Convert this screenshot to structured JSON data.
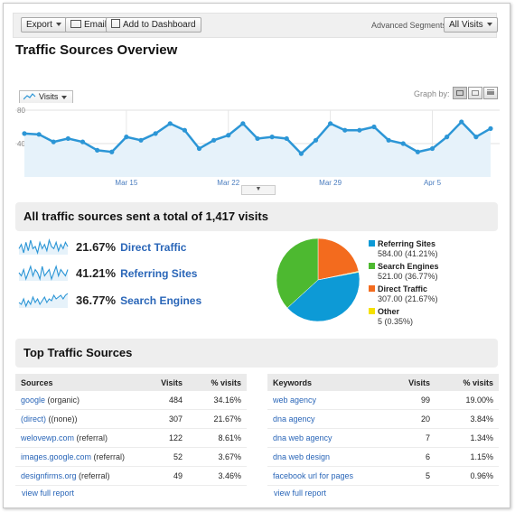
{
  "toolbar": {
    "export_label": "Export",
    "email_label": "Email",
    "dashboard_label": "Add to Dashboard",
    "segments_label": "Advanced Segments:",
    "segments_value": "All Visits"
  },
  "page_title": "Traffic Sources Overview",
  "graph": {
    "metric_tab": "Visits",
    "graph_by_label": "Graph by:"
  },
  "chart_data": [
    {
      "type": "area",
      "series": [
        {
          "name": "Visits",
          "values": [
            52,
            51,
            42,
            46,
            42,
            32,
            30,
            48,
            44,
            52,
            64,
            56,
            34,
            44,
            50,
            64,
            46,
            48,
            46,
            28,
            44,
            64,
            56,
            56,
            60,
            44,
            40,
            30,
            34,
            48,
            66,
            48,
            58
          ]
        }
      ],
      "x_tick_labels": [
        "Mar 15",
        "Mar 22",
        "Mar 29",
        "Apr 5"
      ],
      "x_tick_indices": [
        7,
        14,
        21,
        28
      ],
      "ylim": [
        0,
        80
      ],
      "y_ticks": [
        40,
        80
      ],
      "color": "#2c96d6",
      "fill": "#e6f2fa",
      "grid": true
    },
    {
      "type": "pie",
      "title": "All traffic sources sent a total of 1,417 visits",
      "series": [
        {
          "name": "Referring Sites",
          "value": 584,
          "label": "584.00 (41.21%)",
          "color": "#0d9ad6"
        },
        {
          "name": "Search Engines",
          "value": 521,
          "label": "521.00 (36.77%)",
          "color": "#4db930"
        },
        {
          "name": "Direct Traffic",
          "value": 307,
          "label": "307.00 (21.67%)",
          "color": "#f36b1e"
        },
        {
          "name": "Other",
          "value": 5,
          "label": "5 (0.35%)",
          "color": "#f5e100"
        }
      ]
    }
  ],
  "summary": {
    "title": "All traffic sources sent a total of 1,417 visits",
    "sources": [
      {
        "pct": "21.67%",
        "label": "Direct Traffic",
        "spark": [
          5,
          7,
          3,
          8,
          4,
          9,
          5,
          6,
          3,
          8,
          5,
          7,
          4,
          9,
          6,
          5,
          8,
          4,
          7,
          5,
          8,
          6
        ]
      },
      {
        "pct": "41.21%",
        "label": "Referring Sites",
        "spark": [
          6,
          5,
          7,
          4,
          6,
          8,
          5,
          7,
          6,
          4,
          8,
          5,
          6,
          7,
          4,
          6,
          8,
          5,
          7,
          6,
          5,
          7
        ]
      },
      {
        "pct": "36.77%",
        "label": "Search Engines",
        "spark": [
          4,
          3,
          6,
          2,
          5,
          3,
          7,
          4,
          6,
          3,
          5,
          7,
          4,
          6,
          5,
          8,
          6,
          7,
          8,
          6,
          8,
          9
        ]
      }
    ]
  },
  "top": {
    "title": "Top Traffic Sources",
    "sources_table": {
      "headers": [
        "Sources",
        "Visits",
        "% visits"
      ],
      "rows": [
        [
          "google (organic)",
          "484",
          "34.16%"
        ],
        [
          "(direct) ((none))",
          "307",
          "21.67%"
        ],
        [
          "welovewp.com (referral)",
          "122",
          "8.61%"
        ],
        [
          "images.google.com (referral)",
          "52",
          "3.67%"
        ],
        [
          "designfirms.org (referral)",
          "49",
          "3.46%"
        ]
      ],
      "view_full": "view full report"
    },
    "keywords_table": {
      "headers": [
        "Keywords",
        "Visits",
        "% visits"
      ],
      "rows": [
        [
          "web agency",
          "99",
          "19.00%"
        ],
        [
          "dna agency",
          "20",
          "3.84%"
        ],
        [
          "dna web agency",
          "7",
          "1.34%"
        ],
        [
          "dna web design",
          "6",
          "1.15%"
        ],
        [
          "facebook url for pages",
          "5",
          "0.96%"
        ]
      ],
      "view_full": "view full report"
    }
  }
}
